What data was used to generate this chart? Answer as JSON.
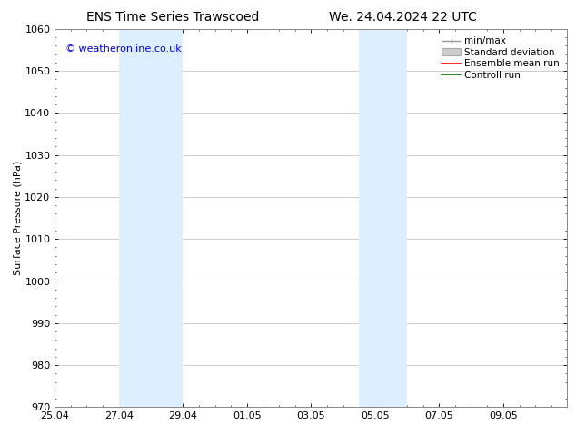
{
  "title_left": "ENS Time Series Trawscoed",
  "title_right": "We. 24.04.2024 22 UTC",
  "ylabel": "Surface Pressure (hPa)",
  "ylim": [
    970,
    1060
  ],
  "yticks": [
    970,
    980,
    990,
    1000,
    1010,
    1020,
    1030,
    1040,
    1050,
    1060
  ],
  "xlim_start": 0,
  "xlim_end": 16,
  "xtick_labels": [
    "25.04",
    "27.04",
    "29.04",
    "01.05",
    "03.05",
    "05.05",
    "07.05",
    "09.05"
  ],
  "xtick_positions": [
    0,
    2,
    4,
    6,
    8,
    10,
    12,
    14
  ],
  "shaded_regions": [
    {
      "x_start": 2,
      "x_end": 4,
      "color": "#ddeeff"
    },
    {
      "x_start": 9.5,
      "x_end": 11,
      "color": "#ddeeff"
    }
  ],
  "watermark_text": "© weatheronline.co.uk",
  "watermark_color": "#0000cc",
  "bg_color": "#ffffff",
  "plot_bg_color": "#ffffff",
  "grid_color": "#bbbbbb",
  "font_size": 8,
  "title_font_size": 10,
  "legend_font_size": 7.5,
  "minmax_color": "#999999",
  "std_color": "#cccccc",
  "std_edge_color": "#aaaaaa",
  "ensemble_color": "#ff0000",
  "control_color": "#007700"
}
